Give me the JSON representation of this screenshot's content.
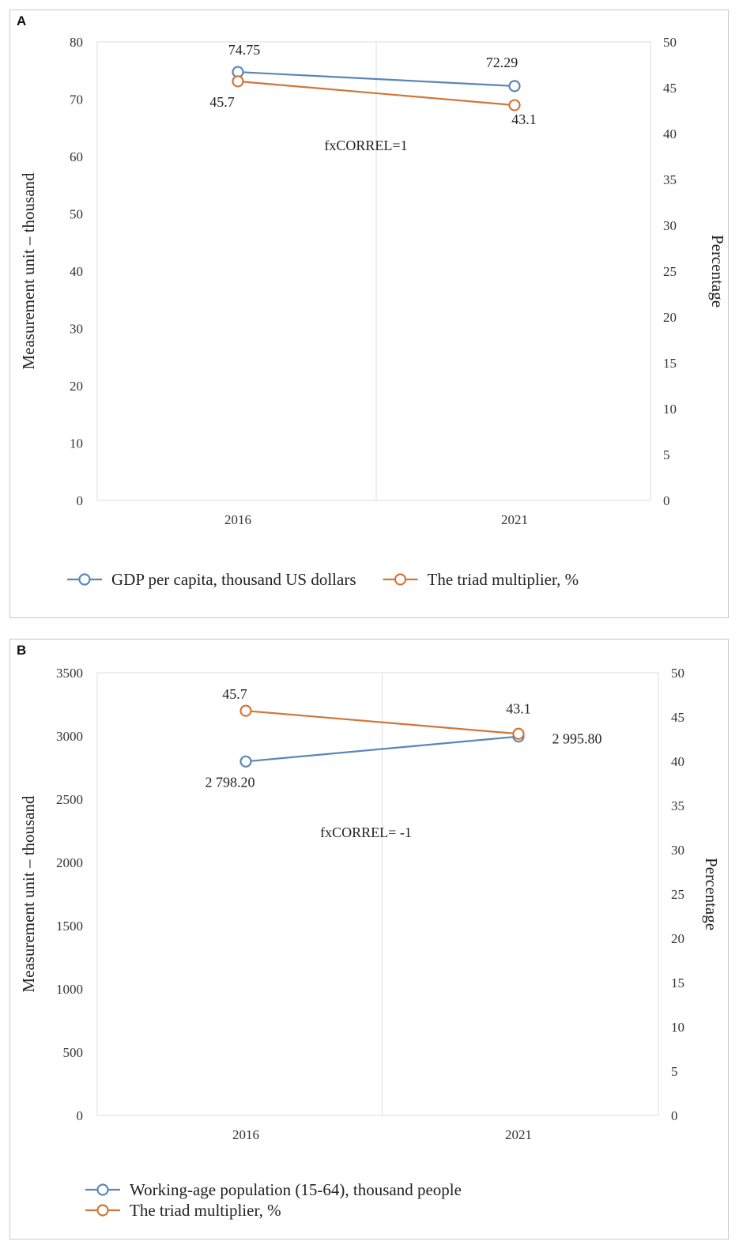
{
  "colors": {
    "gdp": "#5b86b6",
    "multiplier": "#d0763a",
    "working": "#5b86b6",
    "grid": "#dcdcdc"
  },
  "chart_data": [
    {
      "panel_label": "A",
      "type": "line",
      "categories": [
        "2016",
        "2021"
      ],
      "ylabel": "Measurement unit – thousand",
      "y2label": "Percentage",
      "ylim": [
        0,
        80
      ],
      "yticks": [
        "0",
        "10",
        "20",
        "30",
        "40",
        "50",
        "60",
        "70",
        "80"
      ],
      "y2lim": [
        0,
        50
      ],
      "y2ticks": [
        "0",
        "5",
        "10",
        "15",
        "20",
        "25",
        "30",
        "35",
        "40",
        "45",
        "50"
      ],
      "annotation": "fxCORREL=1",
      "legend_layout": "row",
      "series": [
        {
          "name": "GDP per capita, thousand US dollars",
          "axis": "left",
          "color_key": "gdp",
          "values": [
            74.75,
            72.29
          ],
          "labels": [
            "74.75",
            "72.29"
          ]
        },
        {
          "name": "The triad multiplier, %",
          "axis": "right",
          "color_key": "multiplier",
          "values": [
            45.7,
            43.1
          ],
          "labels": [
            "45.7",
            "43.1"
          ]
        }
      ]
    },
    {
      "panel_label": "B",
      "type": "line",
      "categories": [
        "2016",
        "2021"
      ],
      "ylabel": "Measurement unit – thousand",
      "y2label": "Percentage",
      "ylim": [
        0,
        3500
      ],
      "yticks": [
        "0",
        "500",
        "1000",
        "1500",
        "2000",
        "2500",
        "3000",
        "3500"
      ],
      "y2lim": [
        0,
        50
      ],
      "y2ticks": [
        "0",
        "5",
        "10",
        "15",
        "20",
        "25",
        "30",
        "35",
        "40",
        "45",
        "50"
      ],
      "annotation": "fxCORREL= -1",
      "legend_layout": "column",
      "series": [
        {
          "name": "Working-age population (15-64), thousand people",
          "axis": "left",
          "color_key": "working",
          "values": [
            2798.2,
            2995.8
          ],
          "labels": [
            "2 798.20",
            "2 995.80"
          ]
        },
        {
          "name": "The triad multiplier, %",
          "axis": "right",
          "color_key": "multiplier",
          "values": [
            45.7,
            43.1
          ],
          "labels": [
            "45.7",
            "43.1"
          ]
        }
      ]
    }
  ]
}
